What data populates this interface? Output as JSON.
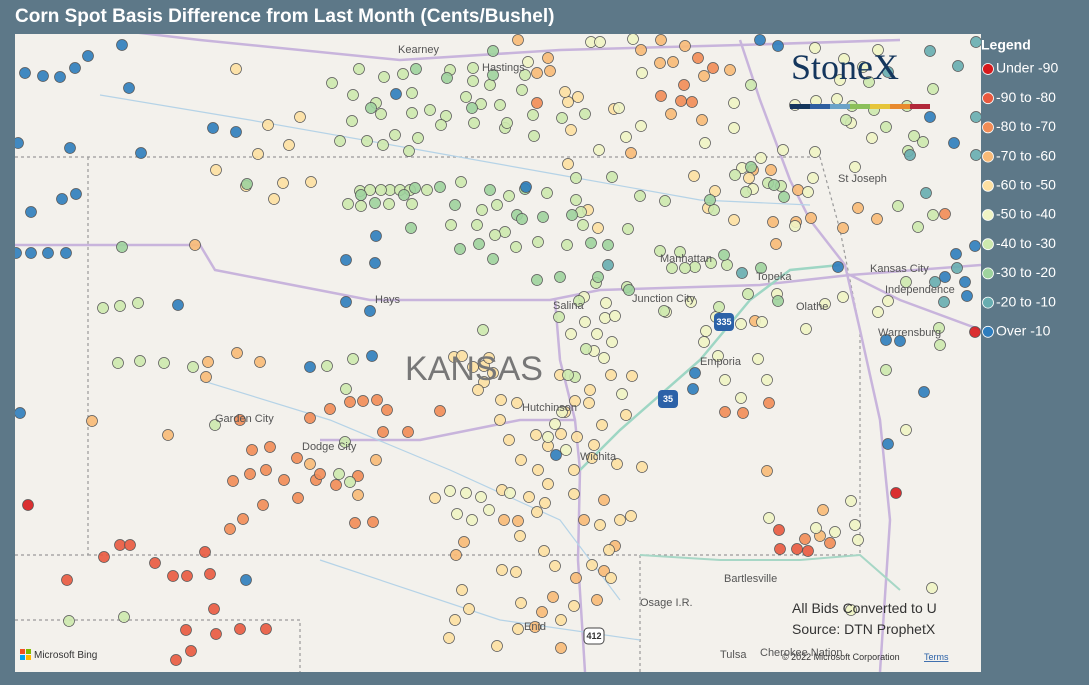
{
  "title": "Corn Spot Basis Difference from Last Month (Cents/Bushel)",
  "legend": {
    "title": "Legend",
    "items": [
      {
        "label": "Under -90",
        "color": "#d7191c"
      },
      {
        "label": "-90 to -80",
        "color": "#e9593f"
      },
      {
        "label": "-80 to -70",
        "color": "#f28c56"
      },
      {
        "label": "-70 to -60",
        "color": "#f8ba77"
      },
      {
        "label": "-60 to -50",
        "color": "#fde0a2"
      },
      {
        "label": "-50 to -40",
        "color": "#f0f4c4"
      },
      {
        "label": "-40 to -30",
        "color": "#cde9ae"
      },
      {
        "label": "-30 to -20",
        "color": "#9ed39d"
      },
      {
        "label": "-20 to -10",
        "color": "#67adb0"
      },
      {
        "label": "Over -10",
        "color": "#2e7dbd"
      }
    ]
  },
  "logo": "StoneX",
  "map_labels": [
    "Kearney",
    "Hastings",
    "St Joseph",
    "Manhattan",
    "Topeka",
    "Kansas City",
    "Independence",
    "Hays",
    "Salina",
    "Junction City",
    "Olathe",
    "Warrensburg",
    "KANSAS",
    "Emporia",
    "Garden City",
    "Dodge City",
    "Hutchinson",
    "Wichita",
    "Bartlesville",
    "Osage I.R.",
    "Enid",
    "Tulsa",
    "Cherokee Nation"
  ],
  "highway_shields": [
    "335",
    "35",
    "412"
  ],
  "notes": [
    "All Bids Converted to U",
    "Source: DTN ProphetX"
  ],
  "attribution": "© 2022 Microsoft Corporation",
  "terms": "Terms",
  "provider": "Microsoft Bing"
}
